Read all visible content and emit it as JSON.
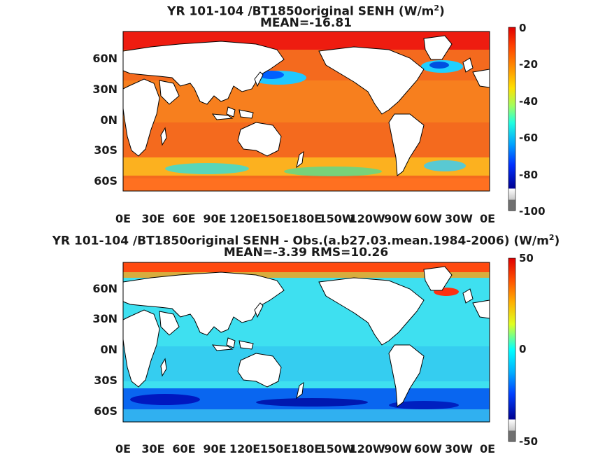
{
  "panels": [
    {
      "title_line1": "YR 101-104 /BT1850original  SENH (W/m",
      "title_sup": "2",
      "title_close": ")",
      "title_line2": "MEAN=-16.81",
      "colorbar_ticks": [
        "0",
        "-20",
        "-40",
        "-60",
        "-80",
        "-100"
      ]
    },
    {
      "title_line1": "YR 101-104 /BT1850original SENH - Obs.(a.b27.03.mean.1984-2006) (W/m",
      "title_sup": "2",
      "title_close": ")",
      "title_line2": "MEAN=-3.39 RMS=10.26",
      "colorbar_ticks": [
        "50",
        "0",
        "-50"
      ]
    }
  ],
  "lat_ticks": [
    "60N",
    "30N",
    "0N",
    "30S",
    "60S"
  ],
  "lon_ticks": [
    "0E",
    "30E",
    "60E",
    "90E",
    "120E",
    "150E",
    "180E",
    "150W",
    "120W",
    "90W",
    "60W",
    "30W",
    "0E"
  ],
  "colors": {
    "land": "#ffffff",
    "missing": "#808080",
    "top_ocean": "#f46a1e",
    "bottom_ocean": "#3ee0f0",
    "jet": [
      "#800000",
      "#ff0000",
      "#ff8000",
      "#ffff00",
      "#80ff80",
      "#00ffff",
      "#0080ff",
      "#0000ff",
      "#000080"
    ]
  }
}
